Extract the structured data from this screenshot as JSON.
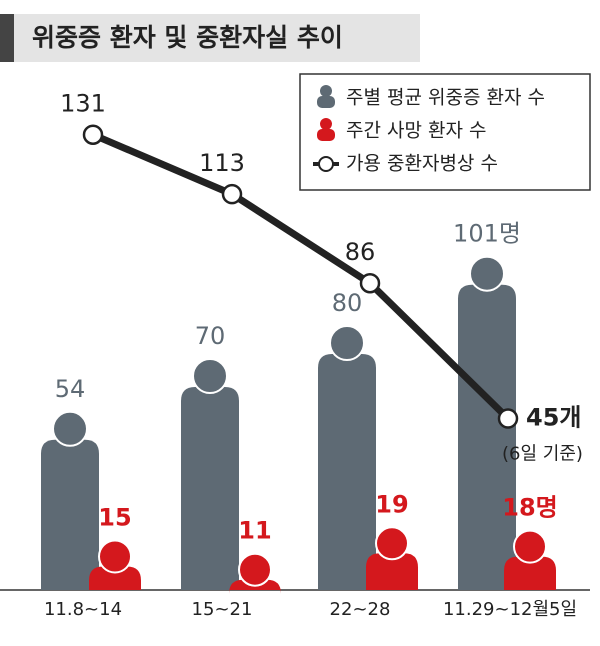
{
  "chart_data": {
    "type": "bar",
    "title": "위중증 환자 및 중환자실 추이",
    "categories": [
      "11.8~14",
      "15~21",
      "22~28",
      "11.29~12월5일"
    ],
    "series": [
      {
        "name": "주별 평균 위중증 환자 수",
        "type": "bar",
        "color": "#5e6a74",
        "values": [
          54,
          70,
          80,
          101
        ],
        "value_labels": [
          "54",
          "70",
          "80",
          "101명"
        ]
      },
      {
        "name": "주간 사망 환자 수",
        "type": "bar",
        "color": "#d4181d",
        "values": [
          15,
          11,
          19,
          18
        ],
        "value_labels": [
          "15",
          "11",
          "19",
          "18명"
        ]
      },
      {
        "name": "가용 중환자병상 수",
        "type": "line",
        "color": "#222222",
        "values": [
          131,
          113,
          86,
          45
        ],
        "value_labels": [
          "131",
          "113",
          "86",
          "45개"
        ]
      }
    ],
    "annotation": "(6일 기준)"
  }
}
